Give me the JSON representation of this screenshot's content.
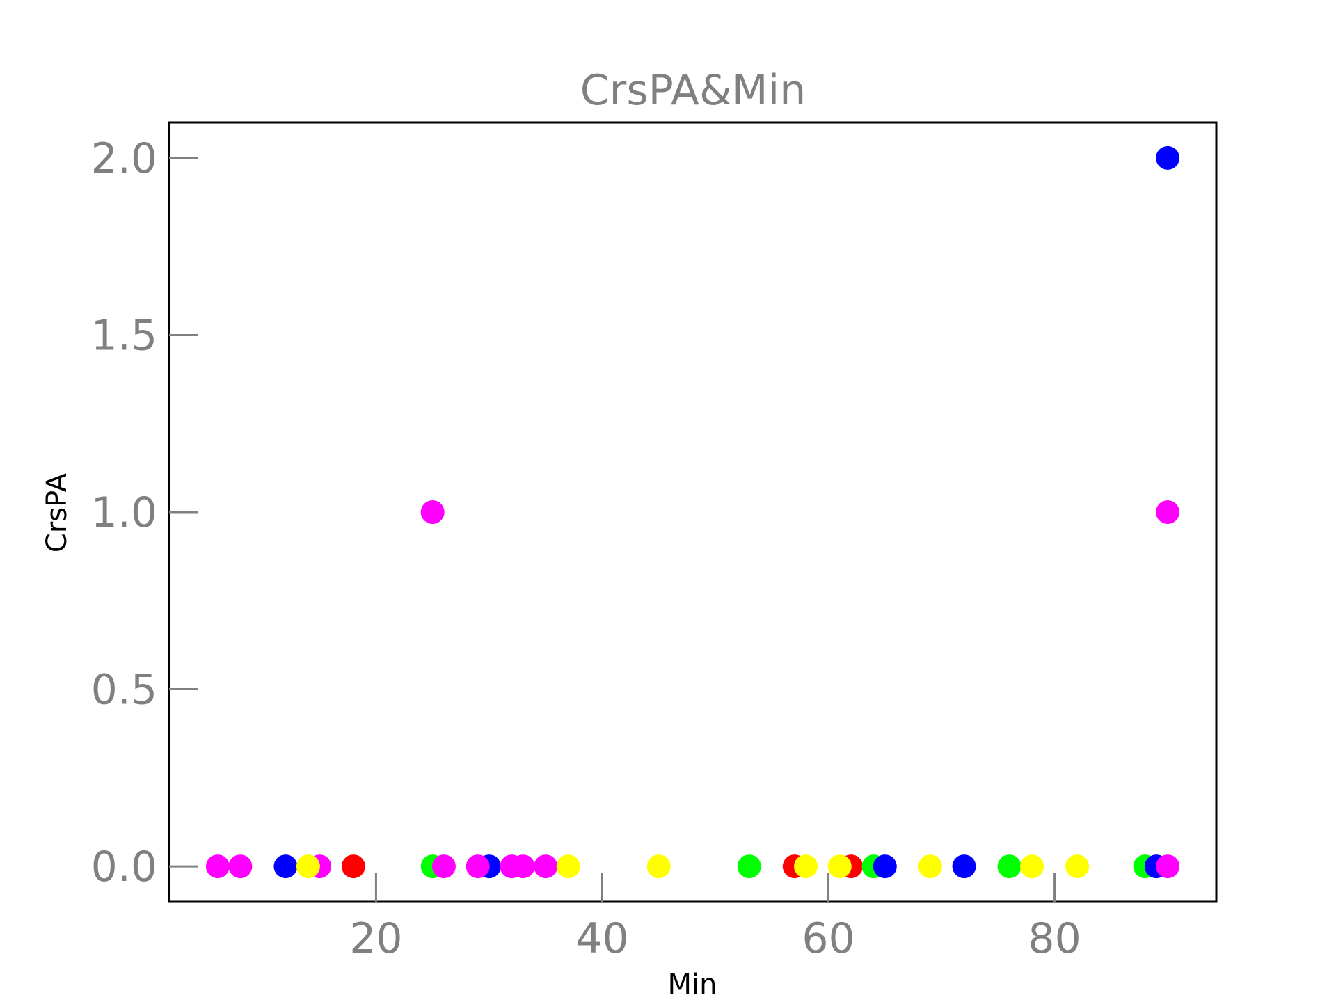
{
  "chart_data": {
    "type": "scatter",
    "title": "CrsPA&Min",
    "xlabel": "Min",
    "ylabel": "CrsPA",
    "xlim": [
      1.7,
      94.3
    ],
    "ylim": [
      -0.1,
      2.1
    ],
    "xticks": [
      20,
      40,
      60,
      80
    ],
    "yticks": [
      0.0,
      0.5,
      1.0,
      1.5,
      2.0
    ],
    "xtick_labels": [
      "20",
      "40",
      "60",
      "80"
    ],
    "ytick_labels": [
      "0.0",
      "0.5",
      "1.0",
      "1.5",
      "2.0"
    ],
    "grid": false,
    "colors": {
      "red": "#ff0000",
      "green": "#00ff00",
      "blue": "#0000ff",
      "yellow": "#ffff00",
      "magenta": "#ff00ff"
    },
    "points": [
      {
        "x": 18,
        "y": 0,
        "color": "red"
      },
      {
        "x": 57,
        "y": 0,
        "color": "red"
      },
      {
        "x": 62,
        "y": 0,
        "color": "red"
      },
      {
        "x": 25,
        "y": 0,
        "color": "green"
      },
      {
        "x": 53,
        "y": 0,
        "color": "green"
      },
      {
        "x": 64,
        "y": 0,
        "color": "green"
      },
      {
        "x": 76,
        "y": 0,
        "color": "green"
      },
      {
        "x": 88,
        "y": 0,
        "color": "green"
      },
      {
        "x": 12,
        "y": 0,
        "color": "blue"
      },
      {
        "x": 30,
        "y": 0,
        "color": "blue"
      },
      {
        "x": 65,
        "y": 0,
        "color": "blue"
      },
      {
        "x": 72,
        "y": 0,
        "color": "blue"
      },
      {
        "x": 89,
        "y": 0,
        "color": "blue"
      },
      {
        "x": 90,
        "y": 2,
        "color": "blue"
      },
      {
        "x": 6,
        "y": 0,
        "color": "magenta"
      },
      {
        "x": 8,
        "y": 0,
        "color": "magenta"
      },
      {
        "x": 15,
        "y": 0,
        "color": "magenta"
      },
      {
        "x": 25,
        "y": 1,
        "color": "magenta"
      },
      {
        "x": 26,
        "y": 0,
        "color": "magenta"
      },
      {
        "x": 29,
        "y": 0,
        "color": "magenta"
      },
      {
        "x": 32,
        "y": 0,
        "color": "magenta"
      },
      {
        "x": 33,
        "y": 0,
        "color": "magenta"
      },
      {
        "x": 35,
        "y": 0,
        "color": "magenta"
      },
      {
        "x": 90,
        "y": 1,
        "color": "magenta"
      },
      {
        "x": 90,
        "y": 0,
        "color": "magenta"
      },
      {
        "x": 14,
        "y": 0,
        "color": "yellow"
      },
      {
        "x": 37,
        "y": 0,
        "color": "yellow"
      },
      {
        "x": 45,
        "y": 0,
        "color": "yellow"
      },
      {
        "x": 58,
        "y": 0,
        "color": "yellow"
      },
      {
        "x": 61,
        "y": 0,
        "color": "yellow"
      },
      {
        "x": 69,
        "y": 0,
        "color": "yellow"
      },
      {
        "x": 78,
        "y": 0,
        "color": "yellow"
      },
      {
        "x": 82,
        "y": 0,
        "color": "yellow"
      }
    ]
  }
}
